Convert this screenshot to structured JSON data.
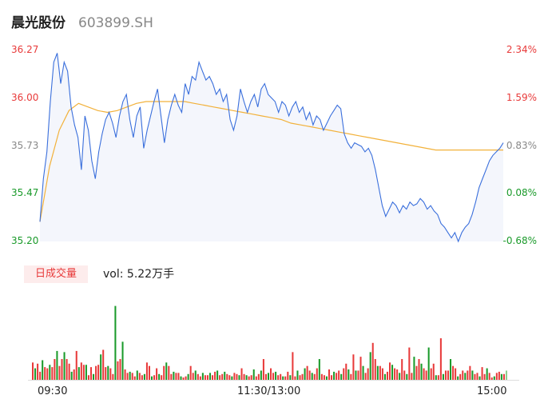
{
  "header": {
    "name": "晨光股份",
    "code": "603899.SH"
  },
  "price_axis": {
    "labels": [
      "36.27",
      "36.00",
      "35.73",
      "35.47",
      "35.20"
    ]
  },
  "pct_axis": {
    "labels": [
      "2.34%",
      "1.59%",
      "0.83%",
      "0.08%",
      "-0.68%"
    ]
  },
  "volume": {
    "badge": "日成交量",
    "text": "vol: 5.22万手"
  },
  "time_axis": {
    "labels": [
      "09:30",
      "11:30/13:00",
      "15:00"
    ]
  },
  "colors": {
    "price": "#3a6fdc",
    "avg": "#f2b13a",
    "up": "#e83a3a",
    "down": "#1a9a2a",
    "neutral": "#888888"
  },
  "chart_data": [
    {
      "type": "line",
      "ylim": [
        35.2,
        36.27
      ],
      "pct_range": [
        -0.68,
        2.34
      ],
      "series": [
        {
          "role": "price",
          "values": [
            35.31,
            35.55,
            35.7,
            35.98,
            36.2,
            36.25,
            36.08,
            36.2,
            36.15,
            35.95,
            35.85,
            35.78,
            35.6,
            35.9,
            35.82,
            35.65,
            35.55,
            35.7,
            35.8,
            35.88,
            35.92,
            35.86,
            35.78,
            35.9,
            35.98,
            36.02,
            35.88,
            35.78,
            35.9,
            35.95,
            35.72,
            35.82,
            35.9,
            35.98,
            36.05,
            35.9,
            35.75,
            35.88,
            35.96,
            36.02,
            35.96,
            35.92,
            36.08,
            36.02,
            36.12,
            36.1,
            36.2,
            36.15,
            36.1,
            36.12,
            36.08,
            36.02,
            36.05,
            35.98,
            36.02,
            35.88,
            35.82,
            35.9,
            36.05,
            35.98,
            35.92,
            35.98,
            36.02,
            35.95,
            36.05,
            36.08,
            36.02,
            36.0,
            35.98,
            35.92,
            35.98,
            35.96,
            35.9,
            35.95,
            35.98,
            35.92,
            35.95,
            35.88,
            35.92,
            35.85,
            35.9,
            35.88,
            35.82,
            35.86,
            35.9,
            35.93,
            35.96,
            35.94,
            35.8,
            35.75,
            35.72,
            35.75,
            35.74,
            35.73,
            35.7,
            35.72,
            35.68,
            35.6,
            35.5,
            35.4,
            35.34,
            35.38,
            35.42,
            35.4,
            35.36,
            35.4,
            35.38,
            35.42,
            35.4,
            35.41,
            35.44,
            35.42,
            35.38,
            35.4,
            35.37,
            35.35,
            35.3,
            35.28,
            35.25,
            35.22,
            35.25,
            35.2,
            35.25,
            35.28,
            35.3,
            35.35,
            35.42,
            35.5,
            35.55,
            35.6,
            35.65,
            35.68,
            35.7,
            35.72,
            35.75
          ]
        },
        {
          "role": "average",
          "values": [
            35.31,
            35.62,
            35.82,
            35.93,
            35.97,
            35.95,
            35.93,
            35.92,
            35.93,
            35.95,
            35.97,
            35.98,
            35.98,
            35.98,
            35.98,
            35.98,
            35.97,
            35.96,
            35.95,
            35.94,
            35.93,
            35.92,
            35.91,
            35.9,
            35.89,
            35.88,
            35.86,
            35.85,
            35.84,
            35.83,
            35.82,
            35.81,
            35.8,
            35.79,
            35.78,
            35.77,
            35.76,
            35.75,
            35.74,
            35.73,
            35.72,
            35.71,
            35.71,
            35.71,
            35.71,
            35.71,
            35.71,
            35.71,
            35.71
          ]
        }
      ]
    },
    {
      "type": "bar",
      "title": "日成交量",
      "values": [
        15,
        10,
        14,
        7,
        17,
        11,
        10,
        13,
        11,
        18,
        25,
        12,
        18,
        24,
        18,
        14,
        7,
        9,
        25,
        11,
        15,
        13,
        13,
        4,
        11,
        5,
        12,
        13,
        22,
        26,
        11,
        12,
        10,
        5,
        64,
        16,
        18,
        33,
        9,
        6,
        7,
        6,
        3,
        8,
        6,
        4,
        5,
        15,
        12,
        3,
        4,
        10,
        5,
        4,
        12,
        15,
        12,
        5,
        7,
        6,
        6,
        3,
        2,
        3,
        5,
        12,
        6,
        8,
        5,
        3,
        6,
        4,
        4,
        6,
        4,
        7,
        8,
        4,
        5,
        7,
        5,
        4,
        3,
        6,
        5,
        4,
        10,
        5,
        4,
        3,
        4,
        9,
        3,
        5,
        8,
        18,
        5,
        6,
        10,
        6,
        7,
        4,
        5,
        3,
        3,
        7,
        4,
        24,
        3,
        8,
        4,
        5,
        10,
        12,
        8,
        6,
        5,
        10,
        18,
        5,
        4,
        3,
        9,
        4,
        7,
        6,
        8,
        5,
        10,
        14,
        9,
        5,
        22,
        8,
        8,
        20,
        12,
        6,
        10,
        24,
        32,
        18,
        12,
        12,
        10,
        5,
        7,
        15,
        13,
        10,
        9,
        6,
        18,
        8,
        5,
        28,
        6,
        20,
        12,
        18,
        14,
        10,
        8,
        28,
        10,
        14,
        4,
        4,
        36,
        5,
        8,
        8,
        18,
        12,
        10,
        3,
        5,
        8,
        6,
        8,
        12,
        8,
        5,
        6,
        3,
        11,
        5,
        10,
        6,
        2,
        3,
        6,
        7,
        5,
        5,
        8
      ]
    }
  ]
}
